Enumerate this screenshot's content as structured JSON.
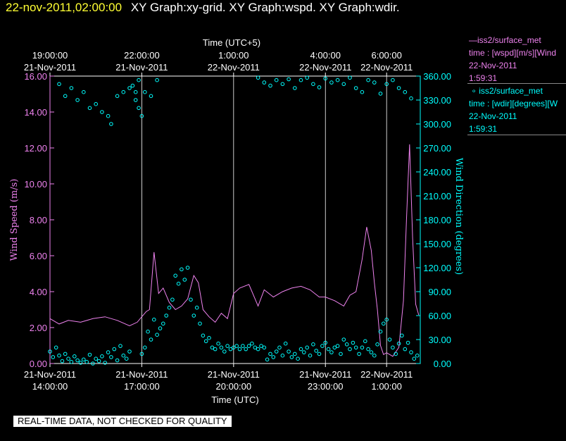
{
  "header": {
    "timestamp": "22-nov-2011,02:00:00",
    "title": "XY Graph:xy-grid.  XY Graph:wspd.  XY Graph:wdir."
  },
  "legend": [
    {
      "name": "iss2/surface_met",
      "line2": "time : [wspd][m/s][Wind",
      "line3": "22-Nov-2011",
      "line4": "1:59:31",
      "color": "#ee82ee",
      "marker": "line"
    },
    {
      "name": "iss2/surface_met",
      "line2": "time : [wdir][degrees][W",
      "line3": "22-Nov-2011",
      "line4": "1:59:31",
      "color": "#00ffff",
      "marker": "circle"
    }
  ],
  "disclaimer": "REAL-TIME DATA, NOT CHECKED FOR QUALITY",
  "chart_data": {
    "type": "line",
    "top_axis_title": "Time (UTC+5)",
    "bottom_axis_title": "Time (UTC)",
    "ylabel_left": "Wind Speed (m/s)",
    "ylabel_right": "Wind Direction (degrees)",
    "x_range_hours": [
      14.0,
      26.1
    ],
    "ylim_left": [
      0,
      16
    ],
    "ylim_right": [
      0,
      360
    ],
    "grid": "vertical",
    "bottom_ticks": [
      {
        "h": 14,
        "l1": "21-Nov-2011",
        "l2": "14:00:00"
      },
      {
        "h": 17,
        "l1": "21-Nov-2011",
        "l2": "17:00:00"
      },
      {
        "h": 20,
        "l1": "21-Nov-2011",
        "l2": "20:00:00"
      },
      {
        "h": 23,
        "l1": "21-Nov-2011",
        "l2": "23:00:00"
      },
      {
        "h": 25,
        "l1": "22-Nov-2011",
        "l2": "1:00:00"
      }
    ],
    "top_ticks": [
      {
        "h": 14,
        "l1": "19:00:00",
        "l2": "21-Nov-2011"
      },
      {
        "h": 17,
        "l1": "22:00:00",
        "l2": "21-Nov-2011"
      },
      {
        "h": 20,
        "l1": "1:00:00",
        "l2": "22-Nov-2011"
      },
      {
        "h": 23,
        "l1": "4:00:00",
        "l2": "22-Nov-2011"
      },
      {
        "h": 25,
        "l1": "6:00:00",
        "l2": "22-Nov-2011"
      }
    ],
    "left_ticks": [
      "0.00",
      "2.00",
      "4.00",
      "6.00",
      "8.00",
      "10.00",
      "12.00",
      "14.00",
      "16.00"
    ],
    "right_ticks": [
      "0.00",
      "30.00",
      "60.00",
      "90.00",
      "120.00",
      "150.00",
      "180.00",
      "210.00",
      "240.00",
      "270.00",
      "300.00",
      "330.00",
      "360.00"
    ],
    "series": [
      {
        "name": "iss2/surface_met",
        "axis": "left",
        "color": "#ee82ee",
        "x": [
          14.0,
          14.3,
          14.6,
          15.0,
          15.4,
          15.8,
          16.2,
          16.6,
          16.85,
          17.0,
          17.15,
          17.25,
          17.4,
          17.55,
          17.7,
          17.9,
          18.1,
          18.3,
          18.5,
          18.7,
          18.85,
          19.0,
          19.2,
          19.4,
          19.6,
          19.8,
          20.0,
          20.2,
          20.5,
          20.8,
          21.0,
          21.3,
          21.6,
          21.9,
          22.2,
          22.5,
          22.8,
          23.0,
          23.3,
          23.6,
          23.8,
          24.0,
          24.2,
          24.35,
          24.5,
          24.6,
          24.7,
          24.8,
          24.9,
          25.0,
          25.2,
          25.4,
          25.55,
          25.65,
          25.75,
          25.85,
          25.95,
          26.05
        ],
        "y": [
          2.5,
          2.2,
          2.4,
          2.3,
          2.5,
          2.6,
          2.4,
          2.1,
          2.3,
          2.6,
          2.9,
          3.0,
          6.2,
          3.9,
          4.2,
          3.4,
          3.0,
          3.2,
          3.6,
          4.9,
          4.5,
          3.0,
          2.6,
          2.3,
          2.8,
          2.5,
          3.9,
          4.2,
          4.4,
          3.2,
          4.1,
          3.7,
          4.0,
          4.2,
          4.3,
          4.1,
          3.7,
          3.7,
          3.5,
          3.2,
          3.8,
          4.0,
          5.8,
          7.6,
          6.3,
          4.5,
          3.0,
          1.0,
          0.5,
          0.6,
          0.4,
          0.9,
          3.5,
          8.0,
          12.2,
          7.0,
          3.3,
          2.7
        ]
      },
      {
        "name": "iss2/surface_met",
        "axis": "right",
        "color": "#00ffff",
        "x": [
          14.0,
          14.1,
          14.2,
          14.3,
          14.4,
          14.5,
          14.6,
          14.7,
          14.8,
          14.9,
          15.0,
          15.1,
          15.2,
          15.3,
          15.4,
          15.5,
          15.6,
          15.7,
          15.8,
          15.9,
          16.0,
          16.1,
          16.2,
          16.3,
          16.4,
          16.5,
          16.6,
          16.7,
          16.8,
          16.9,
          17.0,
          17.1,
          17.2,
          17.3,
          17.4,
          17.5,
          17.6,
          17.7,
          17.8,
          17.9,
          18.0,
          18.1,
          18.2,
          18.3,
          18.4,
          18.5,
          18.6,
          18.7,
          18.8,
          18.9,
          19.0,
          19.1,
          19.2,
          19.3,
          19.4,
          19.5,
          19.6,
          19.7,
          19.8,
          19.9,
          20.0,
          20.1,
          20.2,
          20.3,
          20.4,
          20.5,
          20.6,
          20.7,
          20.8,
          20.9,
          21.0,
          21.1,
          21.2,
          21.3,
          21.4,
          21.5,
          21.6,
          21.7,
          21.8,
          21.9,
          22.0,
          22.1,
          22.2,
          22.3,
          22.4,
          22.5,
          22.6,
          22.7,
          22.8,
          22.9,
          23.0,
          23.1,
          23.2,
          23.3,
          23.4,
          23.5,
          23.6,
          23.7,
          23.8,
          23.9,
          24.0,
          24.1,
          24.2,
          24.3,
          24.4,
          24.5,
          24.6,
          24.7,
          24.8,
          24.9,
          25.0,
          25.1,
          25.2,
          25.3,
          25.4,
          25.5,
          25.6,
          25.7,
          25.8,
          25.9,
          26.0
        ],
        "y": [
          15,
          8,
          20,
          10,
          3,
          12,
          6,
          2,
          9,
          4,
          1,
          5,
          2,
          11,
          0,
          6,
          3,
          9,
          1,
          14,
          8,
          18,
          4,
          22,
          10,
          6,
          15,
          348,
          340,
          355,
          12,
          20,
          40,
          30,
          55,
          36,
          44,
          50,
          60,
          70,
          80,
          110,
          100,
          118,
          105,
          120,
          80,
          60,
          70,
          50,
          35,
          28,
          32,
          20,
          18,
          25,
          20,
          15,
          22,
          18,
          20,
          22,
          18,
          22,
          18,
          22,
          25,
          20,
          18,
          22,
          20,
          5,
          12,
          8,
          15,
          20,
          10,
          25,
          15,
          8,
          12,
          6,
          18,
          14,
          20,
          10,
          24,
          16,
          12,
          22,
          26,
          18,
          14,
          20,
          22,
          12,
          30,
          24,
          18,
          26,
          20,
          12,
          20,
          28,
          18,
          14,
          10,
          24,
          40,
          50,
          55,
          30,
          20,
          12,
          25,
          35,
          18,
          26,
          14,
          6,
          10
        ]
      },
      {
        "name": "iss2/surface_met_upper",
        "axis": "right",
        "color": "#00ffff",
        "x": [
          14.3,
          14.5,
          14.7,
          14.9,
          15.1,
          15.3,
          15.5,
          15.7,
          15.9,
          16.0,
          16.2,
          16.4,
          16.6,
          16.8,
          16.9,
          17.0,
          17.1,
          17.3,
          17.5,
          20.8,
          21.0,
          21.2,
          21.4,
          21.6,
          21.8,
          22.0,
          22.2,
          22.4,
          22.6,
          22.8,
          23.0,
          23.2,
          23.4,
          23.6,
          23.8,
          24.0,
          24.2,
          24.4,
          24.6,
          24.8,
          25.0,
          25.2,
          25.4,
          25.6,
          25.8
        ],
        "y": [
          350,
          335,
          345,
          330,
          340,
          320,
          325,
          315,
          310,
          300,
          335,
          340,
          345,
          330,
          320,
          310,
          340,
          335,
          355,
          358,
          352,
          348,
          355,
          350,
          356,
          345,
          355,
          358,
          350,
          346,
          357,
          352,
          355,
          350,
          358,
          345,
          340,
          355,
          352,
          338,
          350,
          355,
          345,
          340,
          332
        ]
      }
    ]
  }
}
